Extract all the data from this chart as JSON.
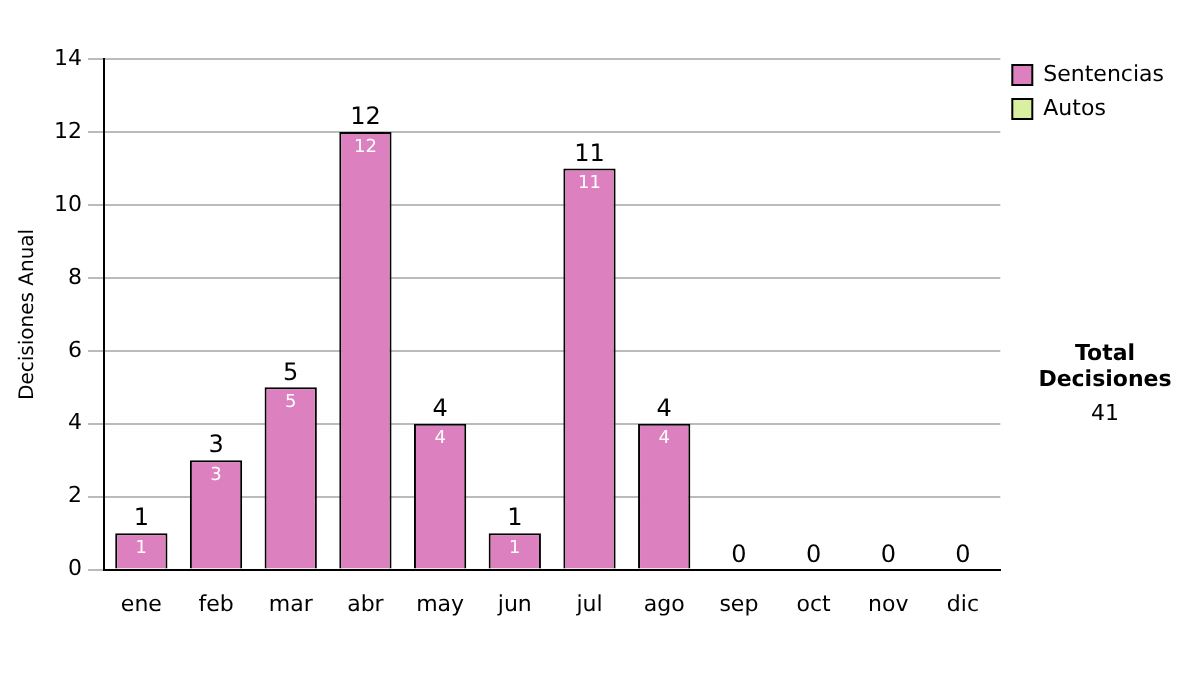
{
  "chart_data": {
    "type": "bar",
    "ylabel": "Decisiones Anual",
    "categories": [
      "ene",
      "feb",
      "mar",
      "abr",
      "may",
      "jun",
      "jul",
      "ago",
      "sep",
      "oct",
      "nov",
      "dic"
    ],
    "series": [
      {
        "name": "Sentencias",
        "color": "#dd80c0",
        "values": [
          1,
          3,
          5,
          12,
          4,
          1,
          11,
          4,
          0,
          0,
          0,
          0
        ],
        "value_labels": [
          "1",
          "3",
          "5",
          "12",
          "4",
          "1",
          "11",
          "4",
          null,
          null,
          null,
          null
        ]
      },
      {
        "name": "Autos",
        "color": "#d8f0a0",
        "values": [
          0,
          0,
          0,
          0,
          0,
          0,
          0,
          0,
          0,
          0,
          0,
          0
        ]
      }
    ],
    "stacked": true,
    "totals": [
      "1",
      "3",
      "5",
      "12",
      "4",
      "1",
      "11",
      "4",
      "0",
      "0",
      "0",
      "0"
    ],
    "ylim": [
      0,
      14
    ],
    "yticks": [
      0,
      2,
      4,
      6,
      8,
      10,
      12,
      14
    ],
    "grid": "y",
    "legend": "right",
    "annotations": [
      "Total Decisiones",
      "41"
    ]
  }
}
